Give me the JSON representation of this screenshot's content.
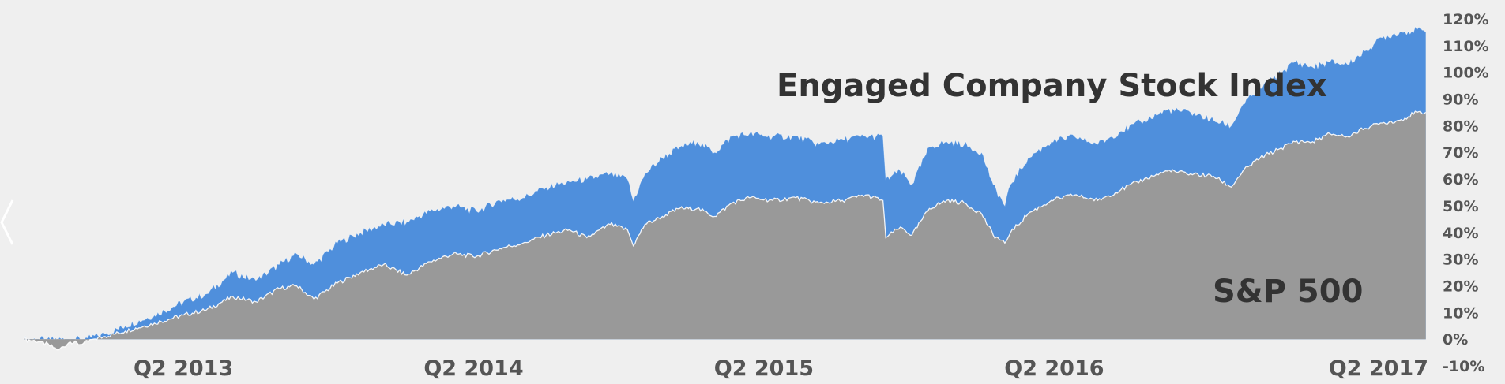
{
  "chart_data": {
    "type": "area",
    "x_unit": "fractional-year",
    "xlim": [
      2012.7,
      2017.55
    ],
    "ylim": [
      -10,
      120
    ],
    "y_tick_values": [
      -10,
      0,
      10,
      20,
      30,
      40,
      50,
      60,
      70,
      80,
      90,
      100,
      110,
      120
    ],
    "y_tick_labels": [
      "-10%",
      "0%",
      "10%",
      "20%",
      "30%",
      "40%",
      "50%",
      "60%",
      "70%",
      "80%",
      "90%",
      "100%",
      "110%",
      "120%"
    ],
    "x_tick_values": [
      2013.25,
      2014.25,
      2015.25,
      2016.25,
      2017.25
    ],
    "x_tick_labels": [
      "Q2 2013",
      "Q2 2014",
      "Q2 2015",
      "Q2 2016",
      "Q2 2017"
    ],
    "grid": false,
    "legend": "none",
    "series": [
      {
        "name": "Engaged Company Stock Index",
        "color": "#4f8fdc",
        "points": [
          [
            2012.7,
            0
          ],
          [
            2012.78,
            0
          ],
          [
            2012.86,
            0
          ],
          [
            2012.92,
            0.5
          ],
          [
            2012.98,
            2
          ],
          [
            2013.05,
            5
          ],
          [
            2013.15,
            9
          ],
          [
            2013.25,
            14
          ],
          [
            2013.33,
            17
          ],
          [
            2013.42,
            25
          ],
          [
            2013.5,
            22
          ],
          [
            2013.58,
            28
          ],
          [
            2013.64,
            32
          ],
          [
            2013.7,
            28
          ],
          [
            2013.78,
            36
          ],
          [
            2013.86,
            40
          ],
          [
            2013.94,
            43
          ],
          [
            2014.02,
            44
          ],
          [
            2014.1,
            48
          ],
          [
            2014.18,
            50
          ],
          [
            2014.26,
            48
          ],
          [
            2014.34,
            52
          ],
          [
            2014.42,
            53
          ],
          [
            2014.5,
            57
          ],
          [
            2014.58,
            59
          ],
          [
            2014.64,
            60
          ],
          [
            2014.72,
            62
          ],
          [
            2014.78,
            60
          ],
          [
            2014.8,
            52
          ],
          [
            2014.84,
            62
          ],
          [
            2014.9,
            68
          ],
          [
            2014.96,
            72
          ],
          [
            2015.02,
            74
          ],
          [
            2015.08,
            70
          ],
          [
            2015.14,
            76
          ],
          [
            2015.2,
            77
          ],
          [
            2015.28,
            76
          ],
          [
            2015.36,
            76
          ],
          [
            2015.44,
            73
          ],
          [
            2015.52,
            75
          ],
          [
            2015.6,
            76
          ],
          [
            2015.66,
            76
          ],
          [
            2015.67,
            60
          ],
          [
            2015.72,
            63
          ],
          [
            2015.76,
            58
          ],
          [
            2015.82,
            72
          ],
          [
            2015.88,
            74
          ],
          [
            2015.94,
            73
          ],
          [
            2016.0,
            70
          ],
          [
            2016.04,
            58
          ],
          [
            2016.08,
            50
          ],
          [
            2016.1,
            58
          ],
          [
            2016.16,
            68
          ],
          [
            2016.24,
            74
          ],
          [
            2016.32,
            76
          ],
          [
            2016.4,
            73
          ],
          [
            2016.48,
            78
          ],
          [
            2016.56,
            82
          ],
          [
            2016.64,
            86
          ],
          [
            2016.72,
            85
          ],
          [
            2016.8,
            82
          ],
          [
            2016.86,
            80
          ],
          [
            2016.9,
            88
          ],
          [
            2016.96,
            94
          ],
          [
            2017.02,
            99
          ],
          [
            2017.08,
            104
          ],
          [
            2017.14,
            102
          ],
          [
            2017.2,
            104
          ],
          [
            2017.26,
            103
          ],
          [
            2017.32,
            108
          ],
          [
            2017.38,
            113
          ],
          [
            2017.44,
            115
          ],
          [
            2017.5,
            116
          ],
          [
            2017.53,
            115
          ]
        ]
      },
      {
        "name": "S&P 500",
        "color": "#999999",
        "points": [
          [
            2012.7,
            0
          ],
          [
            2012.76,
            -1
          ],
          [
            2012.82,
            -4
          ],
          [
            2012.86,
            -1
          ],
          [
            2012.9,
            -2
          ],
          [
            2012.94,
            0
          ],
          [
            2012.98,
            1
          ],
          [
            2013.05,
            3
          ],
          [
            2013.15,
            6
          ],
          [
            2013.25,
            9
          ],
          [
            2013.33,
            11
          ],
          [
            2013.42,
            16
          ],
          [
            2013.5,
            14
          ],
          [
            2013.58,
            19
          ],
          [
            2013.64,
            20
          ],
          [
            2013.7,
            15
          ],
          [
            2013.78,
            21
          ],
          [
            2013.86,
            25
          ],
          [
            2013.94,
            28
          ],
          [
            2014.02,
            24
          ],
          [
            2014.1,
            29
          ],
          [
            2014.18,
            32
          ],
          [
            2014.26,
            31
          ],
          [
            2014.34,
            34
          ],
          [
            2014.42,
            36
          ],
          [
            2014.5,
            39
          ],
          [
            2014.58,
            41
          ],
          [
            2014.64,
            38
          ],
          [
            2014.72,
            43
          ],
          [
            2014.78,
            41
          ],
          [
            2014.8,
            35
          ],
          [
            2014.84,
            43
          ],
          [
            2014.9,
            46
          ],
          [
            2014.96,
            49
          ],
          [
            2015.02,
            49
          ],
          [
            2015.08,
            46
          ],
          [
            2015.14,
            51
          ],
          [
            2015.2,
            53
          ],
          [
            2015.28,
            52
          ],
          [
            2015.36,
            53
          ],
          [
            2015.44,
            51
          ],
          [
            2015.52,
            52
          ],
          [
            2015.6,
            54
          ],
          [
            2015.66,
            52
          ],
          [
            2015.67,
            38
          ],
          [
            2015.72,
            42
          ],
          [
            2015.76,
            39
          ],
          [
            2015.82,
            49
          ],
          [
            2015.88,
            52
          ],
          [
            2015.94,
            51
          ],
          [
            2016.0,
            47
          ],
          [
            2016.04,
            39
          ],
          [
            2016.08,
            36
          ],
          [
            2016.1,
            40
          ],
          [
            2016.16,
            47
          ],
          [
            2016.24,
            52
          ],
          [
            2016.32,
            54
          ],
          [
            2016.4,
            52
          ],
          [
            2016.48,
            56
          ],
          [
            2016.56,
            60
          ],
          [
            2016.64,
            63
          ],
          [
            2016.72,
            62
          ],
          [
            2016.8,
            61
          ],
          [
            2016.86,
            57
          ],
          [
            2016.9,
            63
          ],
          [
            2016.96,
            68
          ],
          [
            2017.02,
            71
          ],
          [
            2017.08,
            74
          ],
          [
            2017.14,
            74
          ],
          [
            2017.2,
            77
          ],
          [
            2017.26,
            76
          ],
          [
            2017.32,
            79
          ],
          [
            2017.38,
            81
          ],
          [
            2017.44,
            82
          ],
          [
            2017.5,
            85
          ],
          [
            2017.53,
            85
          ]
        ]
      }
    ]
  }
}
